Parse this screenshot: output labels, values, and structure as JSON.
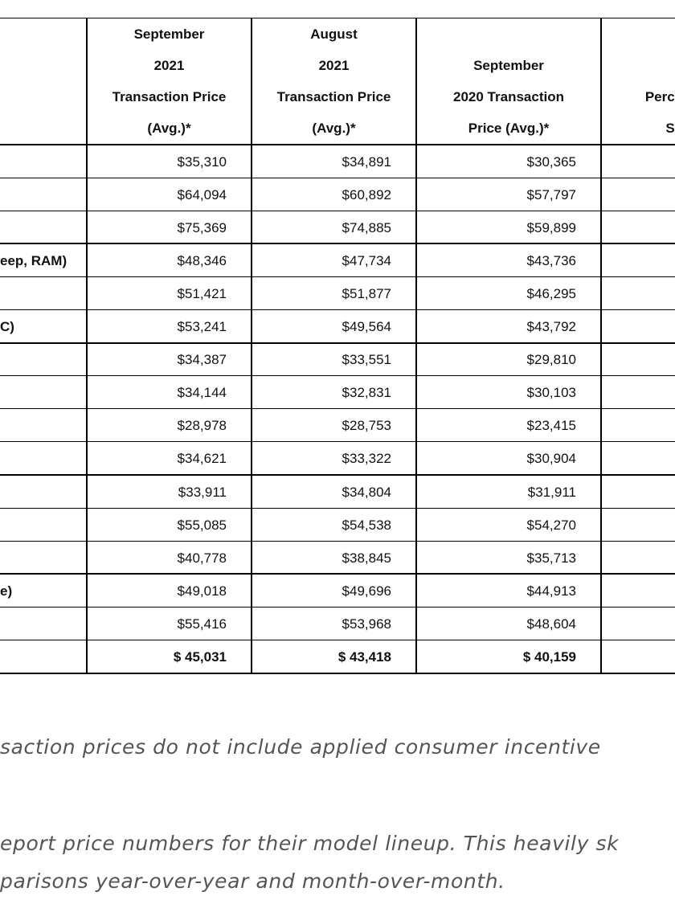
{
  "table": {
    "header": [
      [
        "September",
        "2021",
        "Transaction Price",
        "(Avg.)*"
      ],
      [
        "August",
        "2021",
        "Transaction Price",
        "(Avg.)*"
      ],
      [
        "September",
        "2020 Transaction",
        "Price (Avg.)*"
      ],
      [
        "Percent",
        "S"
      ]
    ],
    "rows": [
      {
        "cells": [
          "$35,310",
          "$34,891",
          "$30,365"
        ]
      },
      {
        "cells": [
          "$64,094",
          "$60,892",
          "$57,797"
        ]
      },
      {
        "cells": [
          "$75,369",
          "$74,885",
          "$59,899"
        ]
      },
      {
        "label": "eep, RAM)",
        "cells": [
          "$48,346",
          "$47,734",
          "$43,736"
        ]
      },
      {
        "cells": [
          "$51,421",
          "$51,877",
          "$46,295"
        ]
      },
      {
        "label": "C)",
        "cells": [
          "$53,241",
          "$49,564",
          "$43,792"
        ]
      },
      {
        "cells": [
          "$34,387",
          "$33,551",
          "$29,810"
        ]
      },
      {
        "cells": [
          "$34,144",
          "$32,831",
          "$30,103"
        ]
      },
      {
        "cells": [
          "$28,978",
          "$28,753",
          "$23,415"
        ]
      },
      {
        "cells": [
          "$34,621",
          "$33,322",
          "$30,904"
        ]
      },
      {
        "cells": [
          "$33,911",
          "$34,804",
          "$31,911"
        ]
      },
      {
        "cells": [
          "$55,085",
          "$54,538",
          "$54,270"
        ]
      },
      {
        "cells": [
          "$40,778",
          "$38,845",
          "$35,713"
        ]
      },
      {
        "label": "e)",
        "cells": [
          "$49,018",
          "$49,696",
          "$44,913"
        ]
      },
      {
        "cells": [
          "$55,416",
          "$53,968",
          "$48,604"
        ]
      },
      {
        "cells": [
          "$ 45,031",
          "$ 43,418",
          "$ 40,159"
        ]
      }
    ]
  },
  "notes": [
    {
      "lines": [
        "saction prices do not include applied consumer incentive"
      ]
    },
    {
      "lines": [
        "eport price numbers for their model lineup. This heavily sk",
        "parisons year-over-year and month-over-month."
      ]
    }
  ]
}
